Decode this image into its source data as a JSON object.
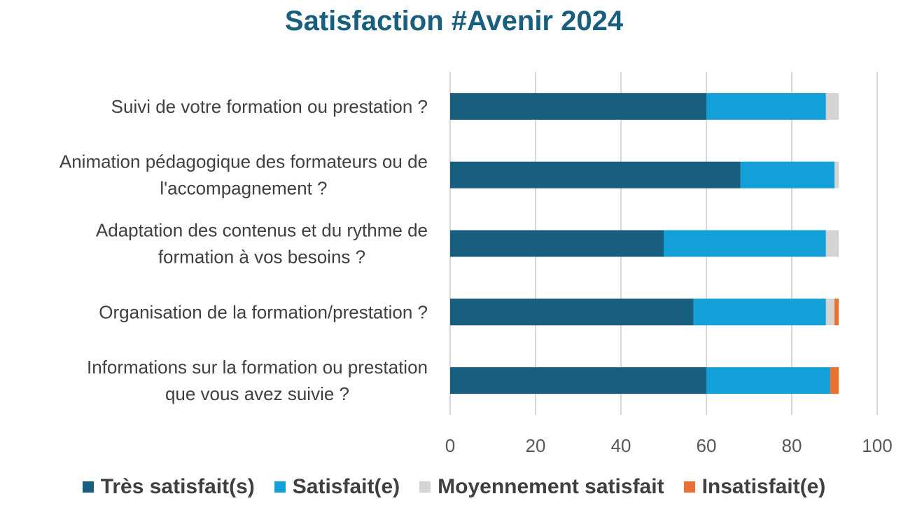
{
  "chart_data": {
    "type": "bar",
    "orientation": "horizontal",
    "stacked": true,
    "title": "Satisfaction #Avenir 2024",
    "categories": [
      [
        "Suivi de votre formation ou prestation ?"
      ],
      [
        "Animation pédagogique des formateurs ou de",
        "l'accompagnement ?"
      ],
      [
        "Adaptation des contenus et du rythme de",
        "formation à vos besoins ?"
      ],
      [
        "Organisation de la formation/prestation ?"
      ],
      [
        "Informations sur la formation ou prestation",
        "que vous avez suivie ?"
      ]
    ],
    "series": [
      {
        "name": "Très satisfait(s)",
        "color": "#175e7f",
        "values": [
          60,
          68,
          50,
          57,
          60
        ]
      },
      {
        "name": "Satisfait(e)",
        "color": "#139fd8",
        "values": [
          28,
          22,
          38,
          31,
          29
        ]
      },
      {
        "name": "Moyennement satisfait",
        "color": "#d4d4d4",
        "values": [
          3,
          1,
          3,
          2,
          0
        ]
      },
      {
        "name": "Insatisfait(e)",
        "color": "#e97132",
        "values": [
          0,
          0,
          0,
          1,
          2
        ]
      }
    ],
    "xlim": [
      0,
      100
    ],
    "xticks": [
      "0",
      "20",
      "40",
      "60",
      "80",
      "100"
    ],
    "grid": true,
    "legend": "bottom"
  }
}
